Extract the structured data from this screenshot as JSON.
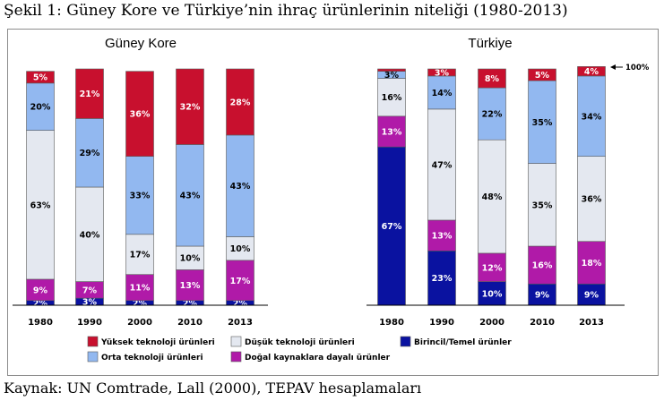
{
  "title": "Şekil 1: Güney Kore ve Türkiye’nin ihraç ürünlerinin niteliği (1980-2013)",
  "source": "Kaynak: UN Comtrade, Lall (2000), TEPAV hesaplamaları",
  "chart_data": {
    "type": "bar",
    "stacked": true,
    "normalized": true,
    "ylim": [
      0,
      100
    ],
    "categories": [
      "1980",
      "1990",
      "2000",
      "2010",
      "2013"
    ],
    "panels": [
      {
        "title": "Güney Kore",
        "series": [
          {
            "name": "Birincil/Temel ürünler",
            "values": [
              2,
              3,
              2,
              2,
              2
            ],
            "labels": [
              "2%",
              "3%",
              "2%",
              "2%",
              "2%"
            ]
          },
          {
            "name": "Doğal kaynaklara dayalı ürünler",
            "values": [
              9,
              7,
              11,
              13,
              17
            ],
            "labels": [
              "9%",
              "7%",
              "11%",
              "13%",
              "17%"
            ]
          },
          {
            "name": "Düşük teknoloji ürünleri",
            "values": [
              63,
              40,
              17,
              10,
              10
            ],
            "labels": [
              "63%",
              "40%",
              "17%",
              "10%",
              "10%"
            ]
          },
          {
            "name": "Orta teknoloji ürünleri",
            "values": [
              20,
              29,
              33,
              43,
              43
            ],
            "labels": [
              "20%",
              "29%",
              "33%",
              "43%",
              "43%"
            ]
          },
          {
            "name": "Yüksek teknoloji ürünleri",
            "values": [
              5,
              21,
              36,
              32,
              28
            ],
            "labels": [
              "5%",
              "21%",
              "36%",
              "32%",
              "28%"
            ]
          }
        ]
      },
      {
        "title": "Türkiye",
        "series": [
          {
            "name": "Birincil/Temel ürünler",
            "values": [
              67,
              23,
              10,
              9,
              9
            ],
            "labels": [
              "67%",
              "23%",
              "10%",
              "9%",
              "9%"
            ]
          },
          {
            "name": "Doğal kaynaklara dayalı ürünler",
            "values": [
              13,
              13,
              12,
              16,
              18
            ],
            "labels": [
              "13%",
              "13%",
              "12%",
              "16%",
              "18%"
            ]
          },
          {
            "name": "Düşük teknoloji ürünleri",
            "values": [
              16,
              47,
              48,
              35,
              36
            ],
            "labels": [
              "16%",
              "47%",
              "48%",
              "35%",
              "36%"
            ]
          },
          {
            "name": "Orta teknoloji ürünleri",
            "values": [
              3,
              14,
              22,
              35,
              34
            ],
            "labels": [
              "3%",
              "14%",
              "22%",
              "35%",
              "34%"
            ]
          },
          {
            "name": "Yüksek teknoloji ürünleri",
            "values": [
              1,
              3,
              8,
              5,
              4
            ],
            "labels": [
              "",
              "3%",
              "8%",
              "5%",
              "4%"
            ]
          }
        ]
      }
    ],
    "annotation": "100%",
    "legend": {
      "placement": "bottom",
      "items": [
        {
          "name": "Yüksek teknoloji ürünleri",
          "color": "#c8102e"
        },
        {
          "name": "Orta teknoloji ürünleri",
          "color": "#92b8f0"
        },
        {
          "name": "Düşük teknoloji ürünleri",
          "color": "#e4e8f0"
        },
        {
          "name": "Doğal kaynaklara dayalı ürünler",
          "color": "#b01aa8"
        },
        {
          "name": "Birincil/Temel ürünler",
          "color": "#0a12a0"
        }
      ]
    },
    "colors": {
      "Yüksek teknoloji ürünleri": "#c8102e",
      "Orta teknoloji ürünleri": "#92b8f0",
      "Düşük teknoloji ürünleri": "#e4e8f0",
      "Doğal kaynaklara dayalı ürünler": "#b01aa8",
      "Birincil/Temel ürünler": "#0a12a0"
    },
    "label_colors": {
      "Yüksek teknoloji ürünleri": "#ffffff",
      "Orta teknoloji ürünleri": "#000000",
      "Düşük teknoloji ürünleri": "#000000",
      "Doğal kaynaklara dayalı ürünler": "#ffffff",
      "Birincil/Temel ürünler": "#ffffff"
    }
  }
}
